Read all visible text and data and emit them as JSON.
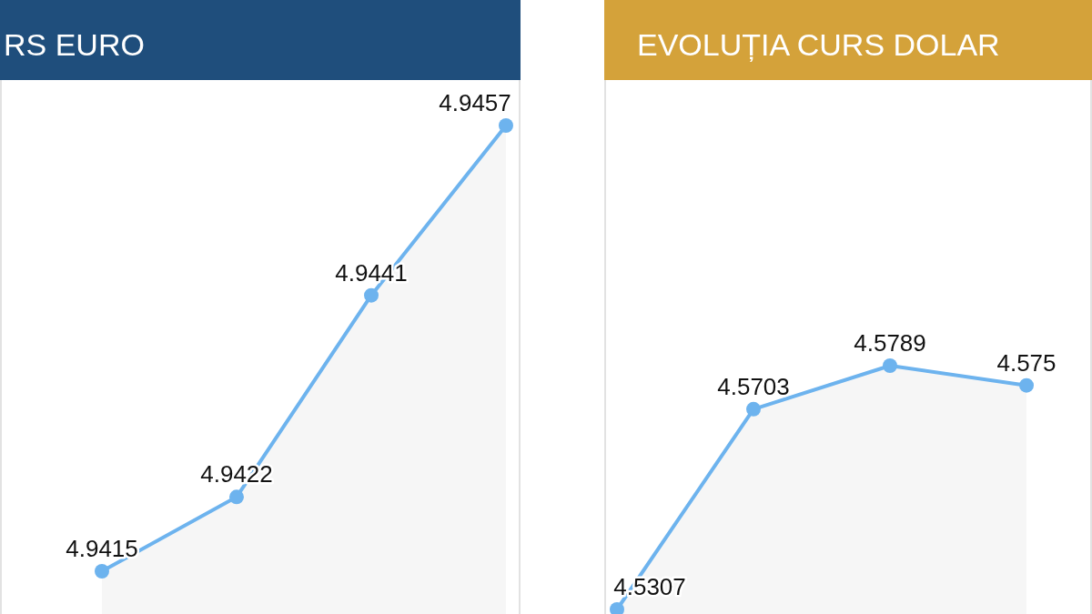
{
  "chart_data": [
    {
      "type": "area",
      "title": "RS EURO",
      "categories": [
        null,
        null,
        null,
        null
      ],
      "series": [
        {
          "color": "#6db3ee",
          "values": [
            4.9415,
            4.9422,
            4.9441,
            4.9457
          ]
        }
      ],
      "data_labels": true
    },
    {
      "type": "area",
      "title": "EVOLUȚIA CURS DOLAR",
      "categories": [
        null,
        null,
        null,
        null
      ],
      "series": [
        {
          "color": "#6db3ee",
          "values": [
            4.5307,
            4.5703,
            4.5789,
            4.575
          ]
        }
      ],
      "data_labels": true
    }
  ]
}
